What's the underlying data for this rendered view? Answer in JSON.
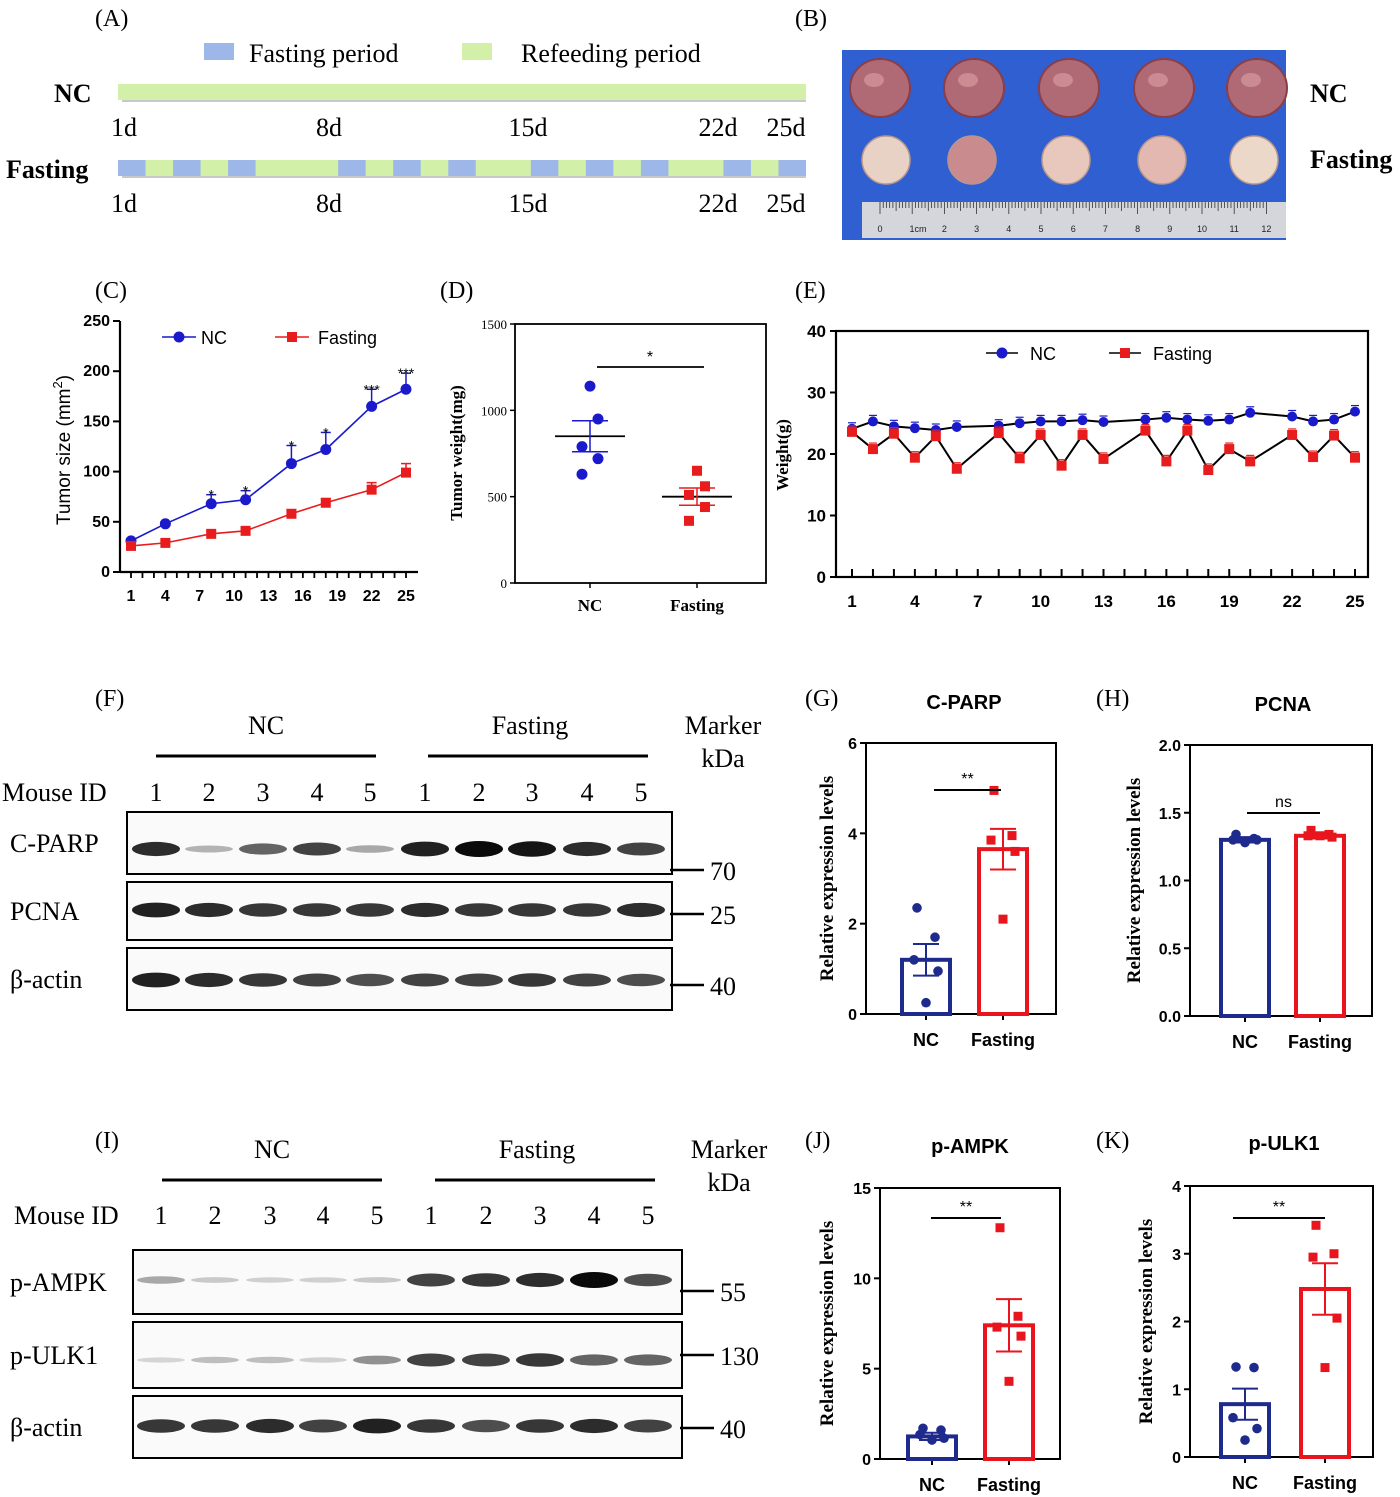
{
  "colors": {
    "nc_blue": "#1a1acc",
    "fasting_red": "#e81c1c",
    "nc_bar": "#1e2a8c",
    "fast_bar": "#e8141e",
    "green_bar": "#d2f0a8",
    "fast_seg": "#9db8e8",
    "photo_bg": "#2f5fd0"
  },
  "chart_data": [
    {
      "id": "A",
      "type": "timeline",
      "panel_label": "(A)",
      "legend": [
        "Fasting period",
        "Refeeding period"
      ],
      "rows": [
        {
          "name": "NC",
          "ticks": [
            "1d",
            "8d",
            "15d",
            "22d",
            "25d"
          ],
          "fasting_days": []
        },
        {
          "name": "Fasting",
          "ticks": [
            "1d",
            "8d",
            "15d",
            "22d",
            "25d"
          ],
          "fasting_days": [
            1,
            3,
            5,
            9,
            11,
            13,
            16,
            18,
            20,
            23,
            25
          ]
        }
      ]
    },
    {
      "id": "B",
      "type": "photo",
      "panel_label": "(B)",
      "row_labels": [
        "NC",
        "Fasting"
      ],
      "ruler_labels": [
        "0",
        "1cm",
        "2",
        "3",
        "4",
        "5",
        "6",
        "7",
        "8",
        "9",
        "10",
        "11",
        "12"
      ]
    },
    {
      "id": "C",
      "type": "line",
      "panel_label": "(C)",
      "ylabel": "Tumor size (mm",
      "ylabel_sup": "2",
      "ylabel_end": ")",
      "ylim": [
        0,
        250
      ],
      "yticks": [
        "0",
        "50",
        "100",
        "150",
        "200",
        "250"
      ],
      "xticks": [
        1,
        4,
        7,
        10,
        13,
        16,
        19,
        22,
        25
      ],
      "x": [
        1,
        4,
        8,
        11,
        15,
        18,
        22,
        25
      ],
      "series": [
        {
          "name": "NC",
          "values": [
            31,
            48,
            68,
            72,
            108,
            122,
            165,
            182
          ],
          "err": [
            2,
            2,
            9,
            9,
            18,
            17,
            17,
            16
          ]
        },
        {
          "name": "Fasting",
          "values": [
            26,
            29,
            38,
            41,
            58,
            69,
            82,
            99
          ],
          "err": [
            2,
            2,
            3,
            3,
            4,
            4,
            7,
            9
          ]
        }
      ],
      "annotations": [
        "*",
        "*",
        "*",
        "*",
        "***",
        "***"
      ],
      "annotation_x": [
        8,
        11,
        15,
        18,
        22,
        25
      ],
      "annotation_y": [
        77,
        81,
        126,
        139,
        182,
        198
      ]
    },
    {
      "id": "D",
      "type": "scatter",
      "panel_label": "(D)",
      "ylabel": "Tumor weight(mg)",
      "ylim": [
        0,
        1500
      ],
      "yticks": [
        "0",
        "500",
        "1000",
        "1500"
      ],
      "categories": [
        "NC",
        "Fasting"
      ],
      "series": [
        {
          "name": "NC",
          "points": [
            1140,
            950,
            790,
            720,
            630
          ],
          "mean": 850,
          "sem": 90
        },
        {
          "name": "Fasting",
          "points": [
            650,
            560,
            510,
            440,
            360
          ],
          "mean": 500,
          "sem": 50
        }
      ],
      "significance": "*"
    },
    {
      "id": "E",
      "type": "line",
      "panel_label": "(E)",
      "ylabel": "Weight(g)",
      "ylim": [
        0,
        40
      ],
      "yticks": [
        "0",
        "10",
        "20",
        "30",
        "40"
      ],
      "xticks": [
        1,
        4,
        7,
        10,
        13,
        16,
        19,
        22,
        25
      ],
      "x": [
        1,
        2,
        3,
        4,
        5,
        6,
        8,
        9,
        10,
        11,
        12,
        13,
        15,
        16,
        17,
        18,
        19,
        20,
        22,
        23,
        24,
        25
      ],
      "series": [
        {
          "name": "NC",
          "values": [
            24.1,
            25.3,
            24.5,
            24.2,
            23.9,
            24.4,
            24.6,
            25.0,
            25.3,
            25.3,
            25.5,
            25.2,
            25.6,
            25.9,
            25.6,
            25.4,
            25.6,
            26.7,
            26.1,
            25.3,
            25.6,
            26.9
          ]
        },
        {
          "name": "Fasting",
          "values": [
            23.6,
            20.8,
            23.3,
            19.4,
            22.9,
            17.6,
            23.4,
            19.3,
            23.1,
            18.1,
            23.1,
            19.2,
            23.8,
            18.8,
            23.8,
            17.4,
            20.8,
            18.8,
            23.1,
            19.5,
            23.0,
            19.4
          ]
        }
      ]
    },
    {
      "id": "F",
      "type": "blot",
      "panel_label": "(F)",
      "groups": [
        "NC",
        "Fasting"
      ],
      "marker_title": [
        "Marker",
        "kDa"
      ],
      "mouse_label": "Mouse ID",
      "lanes": [
        "1",
        "2",
        "3",
        "4",
        "5",
        "1",
        "2",
        "3",
        "4",
        "5"
      ],
      "rows": [
        {
          "name": "C-PARP",
          "marker": "70",
          "intensity": [
            0.85,
            0.25,
            0.6,
            0.75,
            0.3,
            0.9,
            1.0,
            0.95,
            0.85,
            0.75
          ]
        },
        {
          "name": "PCNA",
          "marker": "25",
          "intensity": [
            0.9,
            0.85,
            0.8,
            0.8,
            0.8,
            0.85,
            0.8,
            0.8,
            0.8,
            0.85
          ]
        },
        {
          "name": "β-actin",
          "marker": "40",
          "intensity": [
            0.9,
            0.85,
            0.8,
            0.75,
            0.7,
            0.75,
            0.75,
            0.8,
            0.75,
            0.7
          ]
        }
      ]
    },
    {
      "id": "G",
      "type": "bar",
      "panel_label": "(G)",
      "title": "C-PARP",
      "ylabel": "Relative expression levels",
      "ylim": [
        0,
        6
      ],
      "yticks": [
        "0",
        "2",
        "4",
        "6"
      ],
      "categories": [
        "NC",
        "Fasting"
      ],
      "series": [
        {
          "name": "NC",
          "value": 1.2,
          "sem": 0.35,
          "points": [
            2.35,
            1.7,
            1.2,
            0.95,
            0.25
          ]
        },
        {
          "name": "Fasting",
          "value": 3.65,
          "sem": 0.45,
          "points": [
            4.95,
            3.95,
            3.85,
            3.6,
            2.1
          ]
        }
      ],
      "significance": "**"
    },
    {
      "id": "H",
      "type": "bar",
      "panel_label": "(H)",
      "title": "PCNA",
      "ylabel": "Relative expression levels",
      "ylim": [
        0,
        2
      ],
      "yticks": [
        "0.0",
        "0.5",
        "1.0",
        "1.5",
        "2.0"
      ],
      "categories": [
        "NC",
        "Fasting"
      ],
      "series": [
        {
          "name": "NC",
          "value": 1.3,
          "sem": 0.02,
          "points": [
            1.34,
            1.31,
            1.3,
            1.3,
            1.28
          ]
        },
        {
          "name": "Fasting",
          "value": 1.33,
          "sem": 0.02,
          "points": [
            1.37,
            1.34,
            1.33,
            1.32,
            1.33
          ]
        }
      ],
      "significance": "ns"
    },
    {
      "id": "I",
      "type": "blot",
      "panel_label": "(I)",
      "groups": [
        "NC",
        "Fasting"
      ],
      "marker_title": [
        "Marker",
        "kDa"
      ],
      "mouse_label": "Mouse ID",
      "lanes": [
        "1",
        "2",
        "3",
        "4",
        "5",
        "1",
        "2",
        "3",
        "4",
        "5"
      ],
      "rows": [
        {
          "name": "p-AMPK",
          "marker": "55",
          "intensity": [
            0.3,
            0.15,
            0.12,
            0.12,
            0.15,
            0.75,
            0.8,
            0.85,
            1.0,
            0.7
          ]
        },
        {
          "name": "p-ULK1",
          "marker": "130",
          "intensity": [
            0.1,
            0.2,
            0.2,
            0.12,
            0.4,
            0.75,
            0.75,
            0.8,
            0.6,
            0.6
          ]
        },
        {
          "name": "β-actin",
          "marker": "40",
          "intensity": [
            0.8,
            0.8,
            0.85,
            0.75,
            0.9,
            0.8,
            0.7,
            0.8,
            0.85,
            0.75
          ]
        }
      ]
    },
    {
      "id": "J",
      "type": "bar",
      "panel_label": "(J)",
      "title": "p-AMPK",
      "ylabel": "Relative expression levels",
      "ylim": [
        0,
        15
      ],
      "yticks": [
        "0",
        "5",
        "10",
        "15"
      ],
      "categories": [
        "NC",
        "Fasting"
      ],
      "series": [
        {
          "name": "NC",
          "value": 1.25,
          "sem": 0.2,
          "points": [
            1.7,
            1.6,
            1.35,
            1.15,
            1.05
          ]
        },
        {
          "name": "Fasting",
          "value": 7.4,
          "sem": 1.45,
          "points": [
            12.8,
            7.9,
            7.3,
            6.8,
            4.3
          ]
        }
      ],
      "significance": "**"
    },
    {
      "id": "K",
      "type": "bar",
      "panel_label": "(K)",
      "title": "p-ULK1",
      "ylabel": "Relative expression levels",
      "ylim": [
        0,
        4
      ],
      "yticks": [
        "0",
        "1",
        "2",
        "3",
        "4"
      ],
      "categories": [
        "NC",
        "Fasting"
      ],
      "series": [
        {
          "name": "NC",
          "value": 0.78,
          "sem": 0.23,
          "points": [
            1.33,
            1.32,
            0.58,
            0.42,
            0.25
          ]
        },
        {
          "name": "Fasting",
          "value": 2.48,
          "sem": 0.38,
          "points": [
            3.42,
            3.0,
            2.95,
            2.05,
            1.32
          ]
        }
      ],
      "significance": "**"
    }
  ]
}
